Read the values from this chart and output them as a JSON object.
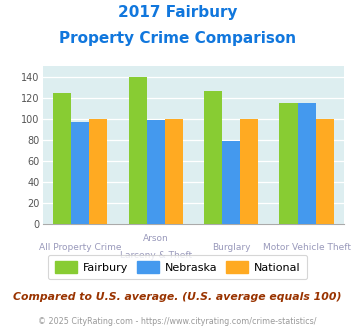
{
  "title_line1": "2017 Fairbury",
  "title_line2": "Property Crime Comparison",
  "groups": [
    {
      "fairbury": 124,
      "nebraska": 97,
      "national": 100
    },
    {
      "fairbury": 140,
      "nebraska": 99,
      "national": 100
    },
    {
      "fairbury": 126,
      "nebraska": 79,
      "national": 100
    },
    {
      "fairbury": 115,
      "nebraska": 115,
      "national": 100
    }
  ],
  "x_top_labels": [
    "All Property Crime",
    "Arson",
    "Burglary",
    "Motor Vehicle Theft"
  ],
  "x_bot_labels": [
    "",
    "Larceny & Theft",
    "",
    ""
  ],
  "color_fairbury": "#88cc33",
  "color_nebraska": "#4499ee",
  "color_national": "#ffaa22",
  "ylim": [
    0,
    150
  ],
  "yticks": [
    0,
    20,
    40,
    60,
    80,
    100,
    120,
    140
  ],
  "bg_color": "#ddeef0",
  "legend_label_fairbury": "Fairbury",
  "legend_label_nebraska": "Nebraska",
  "legend_label_national": "National",
  "footnote1": "Compared to U.S. average. (U.S. average equals 100)",
  "footnote2": "© 2025 CityRating.com - https://www.cityrating.com/crime-statistics/",
  "title_color": "#1177dd",
  "footnote1_color": "#993300",
  "footnote2_color": "#999999"
}
